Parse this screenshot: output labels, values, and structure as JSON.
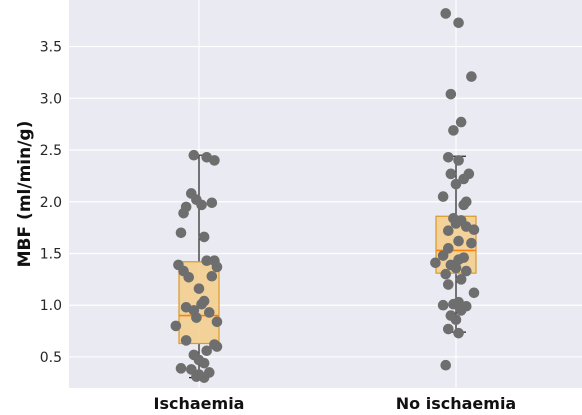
{
  "chart_data": {
    "type": "box",
    "title": "",
    "xlabel": "",
    "ylabel": "MBF (ml/min/g)",
    "ylim": [
      0.2,
      3.95
    ],
    "yticks": [
      "0.5",
      "1.0",
      "1.5",
      "2.0",
      "2.5",
      "3.0",
      "3.5"
    ],
    "grid": true,
    "colors": {
      "plot_background": "#eaeaf2",
      "gridline": "#ffffff",
      "box_fill": "#f3cf8f",
      "box_edge": "#d99a2a",
      "median": "#ff7f0e",
      "whisker": "#222222",
      "points": "#6e6e6e"
    },
    "categories": [
      "Ischaemia",
      "No ischaemia"
    ],
    "boxes": [
      {
        "q1": 0.63,
        "median": 0.9,
        "q3": 1.42,
        "whisker_low": 0.3,
        "whisker_high": 2.45,
        "points": [
          [
            -0.02,
            2.45
          ],
          [
            0.03,
            2.43
          ],
          [
            0.06,
            2.4
          ],
          [
            -0.03,
            2.08
          ],
          [
            -0.01,
            2.02
          ],
          [
            -0.05,
            1.95
          ],
          [
            0.05,
            1.99
          ],
          [
            0.01,
            1.97
          ],
          [
            -0.06,
            1.89
          ],
          [
            -0.07,
            1.7
          ],
          [
            0.02,
            1.66
          ],
          [
            -0.08,
            1.39
          ],
          [
            0.03,
            1.43
          ],
          [
            0.06,
            1.43
          ],
          [
            -0.06,
            1.33
          ],
          [
            0.07,
            1.37
          ],
          [
            0.05,
            1.28
          ],
          [
            -0.04,
            1.27
          ],
          [
            0.0,
            1.16
          ],
          [
            0.02,
            1.04
          ],
          [
            0.01,
            1.01
          ],
          [
            -0.05,
            0.98
          ],
          [
            -0.02,
            0.95
          ],
          [
            0.04,
            0.93
          ],
          [
            -0.01,
            0.88
          ],
          [
            0.07,
            0.84
          ],
          [
            -0.09,
            0.8
          ],
          [
            -0.05,
            0.66
          ],
          [
            0.06,
            0.62
          ],
          [
            0.07,
            0.6
          ],
          [
            0.03,
            0.56
          ],
          [
            -0.02,
            0.52
          ],
          [
            0.0,
            0.47
          ],
          [
            0.02,
            0.44
          ],
          [
            -0.07,
            0.39
          ],
          [
            -0.03,
            0.38
          ],
          [
            0.04,
            0.35
          ],
          [
            -0.01,
            0.31
          ],
          [
            0.02,
            0.3
          ],
          [
            0.0,
            0.33
          ]
        ]
      },
      {
        "q1": 1.31,
        "median": 1.53,
        "q3": 1.86,
        "whisker_low": 0.74,
        "whisker_high": 2.44,
        "points": [
          [
            -0.04,
            3.82
          ],
          [
            0.01,
            3.73
          ],
          [
            0.06,
            3.21
          ],
          [
            -0.02,
            3.04
          ],
          [
            0.02,
            2.77
          ],
          [
            -0.01,
            2.69
          ],
          [
            -0.03,
            2.43
          ],
          [
            0.01,
            2.4
          ],
          [
            0.05,
            2.27
          ],
          [
            0.03,
            2.22
          ],
          [
            -0.02,
            2.27
          ],
          [
            0.0,
            2.17
          ],
          [
            -0.05,
            2.05
          ],
          [
            0.04,
            2.0
          ],
          [
            0.03,
            1.97
          ],
          [
            0.07,
            1.73
          ],
          [
            -0.01,
            1.84
          ],
          [
            0.02,
            1.82
          ],
          [
            0.0,
            1.79
          ],
          [
            0.04,
            1.76
          ],
          [
            -0.03,
            1.72
          ],
          [
            0.06,
            1.6
          ],
          [
            -0.03,
            1.55
          ],
          [
            0.01,
            1.62
          ],
          [
            -0.05,
            1.48
          ],
          [
            0.03,
            1.46
          ],
          [
            0.01,
            1.44
          ],
          [
            -0.02,
            1.39
          ],
          [
            -0.08,
            1.41
          ],
          [
            0.0,
            1.36
          ],
          [
            0.04,
            1.33
          ],
          [
            -0.04,
            1.3
          ],
          [
            0.02,
            1.25
          ],
          [
            0.07,
            1.12
          ],
          [
            -0.03,
            1.2
          ],
          [
            0.01,
            1.03
          ],
          [
            -0.01,
            1.01
          ],
          [
            0.04,
            0.99
          ],
          [
            -0.05,
            1.0
          ],
          [
            0.02,
            0.95
          ],
          [
            -0.02,
            0.9
          ],
          [
            0.0,
            0.86
          ],
          [
            -0.03,
            0.77
          ],
          [
            0.01,
            0.73
          ],
          [
            -0.04,
            0.42
          ]
        ]
      }
    ]
  }
}
